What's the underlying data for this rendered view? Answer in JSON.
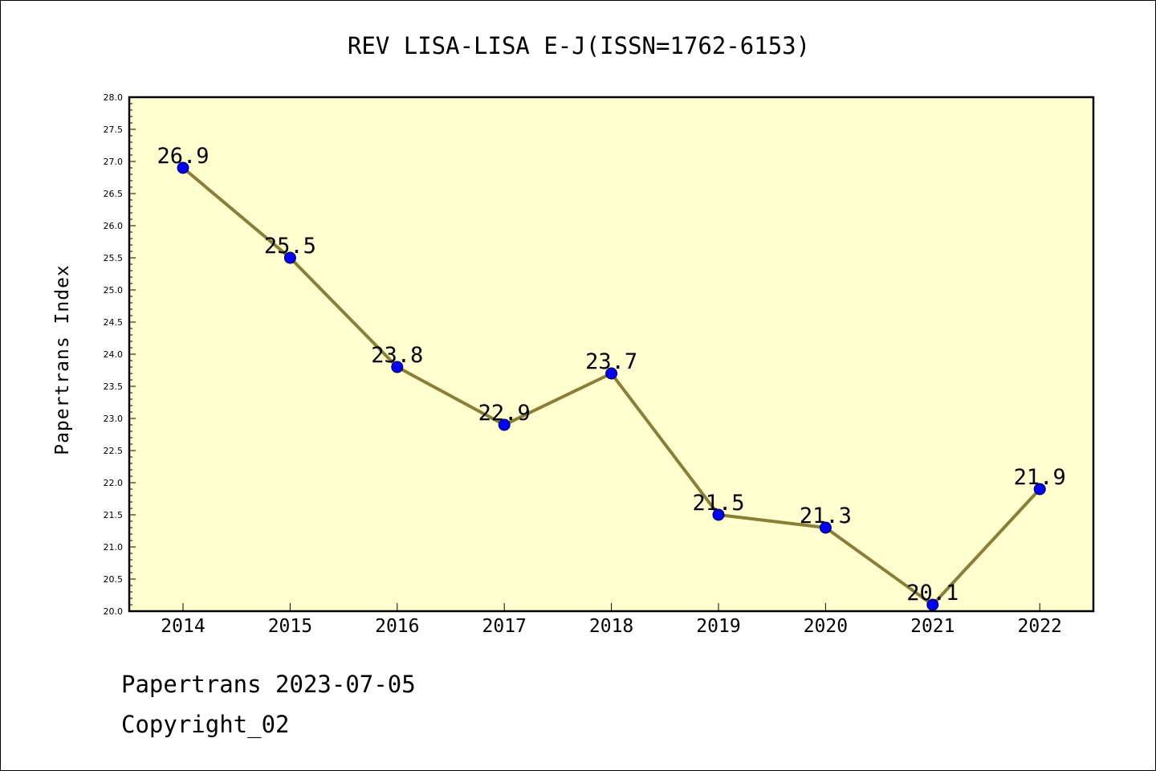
{
  "chart_data": {
    "type": "line",
    "title": "REV LISA-LISA E-J(ISSN=1762-6153)",
    "xlabel": "",
    "ylabel": "Papertrans Index",
    "x": [
      "2014",
      "2015",
      "2016",
      "2017",
      "2018",
      "2019",
      "2020",
      "2021",
      "2022"
    ],
    "series": [
      {
        "values": [
          26.9,
          25.5,
          23.8,
          22.9,
          23.7,
          21.5,
          21.3,
          20.1,
          21.9
        ]
      }
    ],
    "data_labels": [
      "26.9",
      "25.5",
      "23.8",
      "22.9",
      "23.7",
      "21.5",
      "21.3",
      "20.1",
      "21.9"
    ],
    "ylim": [
      20.0,
      28.0
    ],
    "yticks": [
      "20.0",
      "20.5",
      "21.0",
      "21.5",
      "22.0",
      "22.5",
      "23.0",
      "23.5",
      "24.0",
      "24.5",
      "25.0",
      "25.5",
      "26.0",
      "26.5",
      "27.0",
      "27.5",
      "28.0"
    ],
    "grid": false,
    "legend": "none",
    "colors": {
      "plot_background": "#ffffd0",
      "line": "#8b7e35",
      "marker": "#0000ff"
    }
  },
  "footer": {
    "line1": "Papertrans 2023-07-05",
    "line2": "Copyright_02"
  }
}
